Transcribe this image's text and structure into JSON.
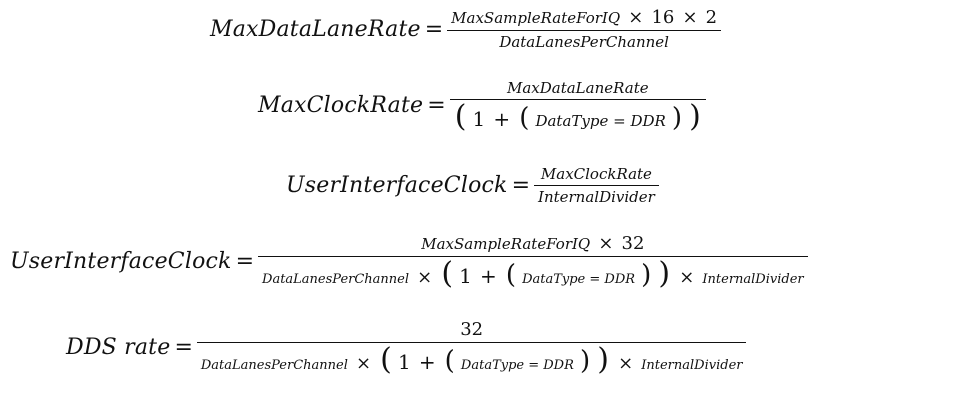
{
  "equations": [
    {
      "lhs": "MaxDataLaneRate",
      "equals": "=",
      "num": {
        "a": "MaxSampleRateForIQ",
        "t1": "×",
        "n1": "16",
        "t2": "×",
        "n2": "2"
      },
      "den": "DataLanesPerChannel"
    },
    {
      "lhs": "MaxClockRate",
      "equals": "=",
      "num": "MaxDataLaneRate",
      "den": {
        "open_outer": "(",
        "one": "1",
        "plus": "+",
        "open_inner": "(",
        "expr": "DataType = DDR",
        "close_inner": ")",
        "close_outer": ")"
      }
    },
    {
      "lhs": "UserInterfaceClock",
      "equals": "=",
      "num": "MaxClockRate",
      "den": "InternalDivider"
    },
    {
      "lhs": "UserInterfaceClock",
      "equals": "=",
      "num": {
        "a": "MaxSampleRateForIQ",
        "t": "×",
        "n": "32"
      },
      "den": {
        "a": "DataLanesPerChannel",
        "t1": "×",
        "open_outer": "(",
        "one": "1",
        "plus": "+",
        "open_inner": "(",
        "expr": "DataType = DDR",
        "close_inner": ")",
        "close_outer": ")",
        "t2": "×",
        "b": "InternalDivider"
      }
    },
    {
      "lhs": "DDS rate",
      "equals": "=",
      "num": "32",
      "den": {
        "a": "DataLanesPerChannel",
        "t1": "×",
        "open_outer": "(",
        "one": "1",
        "plus": "+",
        "open_inner": "(",
        "expr": "DataType = DDR",
        "close_inner": ")",
        "close_outer": ")",
        "t2": "×",
        "b": "InternalDivider"
      }
    }
  ]
}
